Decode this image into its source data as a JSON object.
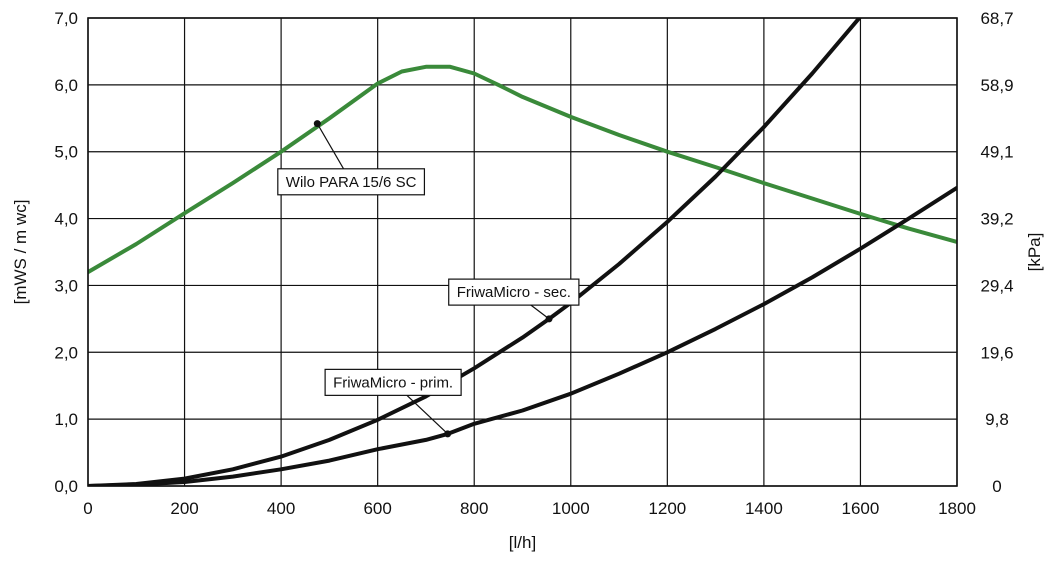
{
  "chart_data": {
    "type": "line",
    "xlabel": "[l/h]",
    "ylabel_left": "[mWS / m wc]",
    "ylabel_right": "[kPa]",
    "xlim": [
      0,
      1800
    ],
    "ylim": [
      0,
      7
    ],
    "grid": true,
    "x_ticks": [
      "0",
      "200",
      "400",
      "600",
      "800",
      "1000",
      "1200",
      "1400",
      "1600",
      "1800"
    ],
    "y_ticks_left": [
      "0,0",
      "1,0",
      "2,0",
      "3,0",
      "4,0",
      "5,0",
      "6,0",
      "7,0"
    ],
    "y_ticks_right": [
      "0",
      "9,8",
      "19,6",
      "29,4",
      "39,2",
      "49,1",
      "58,9",
      "68,7"
    ],
    "series": [
      {
        "name": "Wilo PARA 15/6 SC",
        "color": "#3a8a3a",
        "x": [
          0,
          100,
          200,
          300,
          400,
          500,
          600,
          650,
          700,
          750,
          800,
          850,
          900,
          1000,
          1100,
          1200,
          1300,
          1400,
          1500,
          1600,
          1700,
          1800
        ],
        "y": [
          3.2,
          3.62,
          4.08,
          4.53,
          5.0,
          5.5,
          6.02,
          6.2,
          6.27,
          6.27,
          6.17,
          6.0,
          5.82,
          5.52,
          5.25,
          5.0,
          4.77,
          4.53,
          4.3,
          4.07,
          3.85,
          3.65
        ]
      },
      {
        "name": "FriwaMicro - sec.",
        "color": "#111111",
        "x": [
          0,
          100,
          200,
          300,
          400,
          500,
          600,
          700,
          800,
          900,
          955,
          1000,
          1100,
          1200,
          1300,
          1400,
          1500,
          1600
        ],
        "y": [
          0,
          0.03,
          0.11,
          0.25,
          0.44,
          0.69,
          0.99,
          1.34,
          1.76,
          2.22,
          2.5,
          2.74,
          3.32,
          3.95,
          4.63,
          5.37,
          6.17,
          7.02
        ]
      },
      {
        "name": "FriwaMicro - prim.",
        "color": "#111111",
        "x": [
          0,
          100,
          200,
          300,
          400,
          500,
          600,
          700,
          745,
          800,
          900,
          1000,
          1100,
          1200,
          1300,
          1400,
          1500,
          1600,
          1700,
          1800
        ],
        "y": [
          0,
          0.02,
          0.06,
          0.14,
          0.25,
          0.38,
          0.55,
          0.69,
          0.78,
          0.93,
          1.13,
          1.38,
          1.68,
          2.0,
          2.35,
          2.72,
          3.12,
          3.55,
          4.0,
          4.46
        ]
      }
    ],
    "annotations": [
      {
        "text": "Wilo PARA 15/6 SC",
        "point": [
          475,
          5.42
        ],
        "box_at": [
          545,
          4.55
        ]
      },
      {
        "text": "FriwaMicro - sec.",
        "point": [
          955,
          2.5
        ],
        "box_at": [
          882,
          2.9
        ]
      },
      {
        "text": "FriwaMicro - prim.",
        "point": [
          745,
          0.78
        ],
        "box_at": [
          632,
          1.55
        ]
      }
    ]
  }
}
